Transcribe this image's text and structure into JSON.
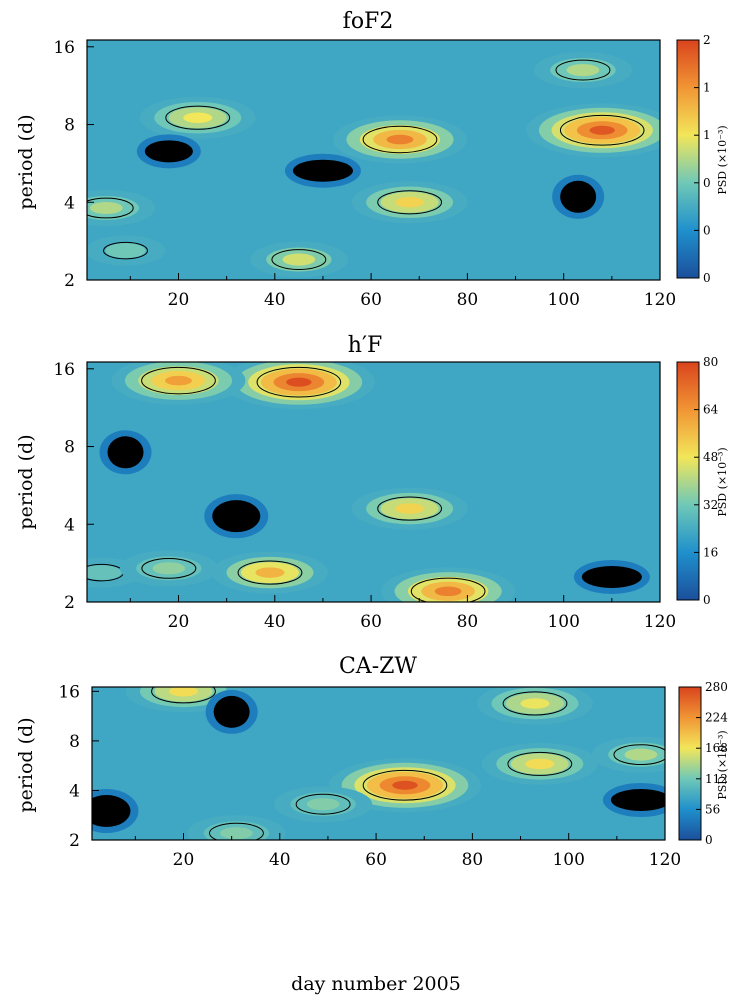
{
  "chart_data": [
    {
      "type": "heatmap",
      "title": "foF2",
      "ylabel": "period (d)",
      "xlabel": "",
      "x_ticks": [
        "20",
        "40",
        "60",
        "80",
        "100",
        "120"
      ],
      "y_ticks": [
        "2",
        "4",
        "8",
        "16"
      ],
      "xlim": [
        1,
        120
      ],
      "ylim": [
        2,
        17
      ],
      "y_scale": "log2",
      "colorbar": {
        "label": "PSD (×10⁻³)",
        "ticks": [
          "0",
          "0",
          "0",
          "1",
          "1",
          "2"
        ],
        "range": [
          0,
          2
        ]
      },
      "features": [
        {
          "x": 108,
          "y": 7.6,
          "value": 1.9
        },
        {
          "x": 66,
          "y": 7.0,
          "value": 1.7
        },
        {
          "x": 68,
          "y": 4.0,
          "value": 1.3
        },
        {
          "x": 24,
          "y": 8.5,
          "value": 1.2
        },
        {
          "x": 5,
          "y": 3.8,
          "value": 1.0
        },
        {
          "x": 45,
          "y": 2.4,
          "value": 1.1
        },
        {
          "x": 104,
          "y": 13.0,
          "value": 1.0
        },
        {
          "x": 9,
          "y": 2.6,
          "value": 0.8
        },
        {
          "x": 50,
          "y": 5.3,
          "value": 0.0
        },
        {
          "x": 103,
          "y": 4.2,
          "value": 0.0
        },
        {
          "x": 18,
          "y": 6.3,
          "value": 0.0
        }
      ]
    },
    {
      "type": "heatmap",
      "title": "h′F",
      "ylabel": "period (d)",
      "xlabel": "",
      "x_ticks": [
        "20",
        "40",
        "60",
        "80",
        "100",
        "120"
      ],
      "y_ticks": [
        "2",
        "4",
        "8",
        "16"
      ],
      "xlim": [
        1,
        120
      ],
      "ylim": [
        2,
        17
      ],
      "y_scale": "log2",
      "colorbar": {
        "label": "PSD (×10⁻³)",
        "ticks": [
          "0",
          "16",
          "32",
          "48",
          "64",
          "80"
        ],
        "range": [
          0,
          80
        ]
      },
      "features": [
        {
          "x": 45,
          "y": 14.2,
          "value": 78
        },
        {
          "x": 20,
          "y": 14.4,
          "value": 62
        },
        {
          "x": 68,
          "y": 4.6,
          "value": 52
        },
        {
          "x": 76,
          "y": 2.2,
          "value": 68
        },
        {
          "x": 39,
          "y": 2.6,
          "value": 58
        },
        {
          "x": 4,
          "y": 2.6,
          "value": 30
        },
        {
          "x": 18,
          "y": 2.7,
          "value": 36
        },
        {
          "x": 32,
          "y": 4.3,
          "value": 0
        },
        {
          "x": 110,
          "y": 2.5,
          "value": 0
        },
        {
          "x": 9,
          "y": 7.6,
          "value": 0
        }
      ]
    },
    {
      "type": "heatmap",
      "title": "CA-ZW",
      "ylabel": "period (d)",
      "xlabel": "day number 2005",
      "x_ticks": [
        "20",
        "40",
        "60",
        "80",
        "100",
        "120"
      ],
      "y_ticks": [
        "2",
        "4",
        "8",
        "16"
      ],
      "xlim": [
        1,
        120
      ],
      "ylim": [
        2,
        17
      ],
      "y_scale": "log2",
      "colorbar": {
        "label": "PSD (×10⁻³)",
        "ticks": [
          "0",
          "56",
          "112",
          "168",
          "224",
          "280"
        ],
        "range": [
          0,
          280
        ]
      },
      "features": [
        {
          "x": 66,
          "y": 4.3,
          "value": 270
        },
        {
          "x": 20,
          "y": 16.0,
          "value": 175
        },
        {
          "x": 93,
          "y": 13.5,
          "value": 165
        },
        {
          "x": 94,
          "y": 5.8,
          "value": 175
        },
        {
          "x": 115,
          "y": 6.6,
          "value": 140
        },
        {
          "x": 49,
          "y": 3.3,
          "value": 120
        },
        {
          "x": 31,
          "y": 2.2,
          "value": 120
        },
        {
          "x": 4,
          "y": 3.0,
          "value": 0
        },
        {
          "x": 115,
          "y": 3.5,
          "value": 0
        },
        {
          "x": 30,
          "y": 12.0,
          "value": 0
        }
      ]
    }
  ]
}
